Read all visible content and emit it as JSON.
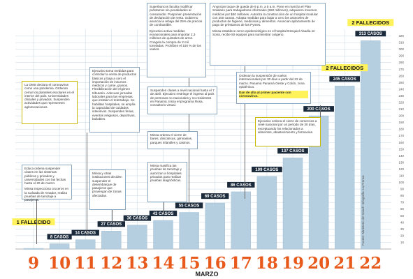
{
  "chart_data": {
    "type": "bar",
    "categories": [
      "9",
      "10",
      "11",
      "12",
      "13",
      "14",
      "15",
      "16",
      "17",
      "18",
      "19",
      "20",
      "21",
      "22"
    ],
    "values": [
      1,
      8,
      14,
      27,
      36,
      43,
      55,
      69,
      86,
      109,
      137,
      200,
      245,
      313
    ],
    "bar_labels": [
      "1 FALLECIDO",
      "8 CASOS",
      "14 CASOS",
      "27 CASOS",
      "36 CASOS",
      "43 CASOS",
      "55 CASOS",
      "69 CASOS",
      "86 CASOS",
      "109 CASOS",
      "137 CASOS",
      "200 CASOS",
      "245 CASOS",
      "313 CASOS"
    ],
    "death_labels": [
      {
        "day": "9",
        "label": "1 FALLECIDO"
      },
      {
        "day": "21",
        "label": "2 FALLECIDOS"
      },
      {
        "day": "22",
        "label": "2 FALLECIDOS"
      }
    ],
    "xlabel": "MARZO",
    "ylim": [
      0,
      330
    ],
    "yticks": [
      10,
      20,
      30,
      40,
      50,
      60,
      70,
      80,
      90,
      100,
      110,
      120,
      130,
      140,
      150,
      160,
      170,
      180,
      190,
      200,
      210,
      220,
      230,
      240,
      250,
      260,
      270,
      280,
      290,
      300,
      310,
      320
    ],
    "grid": true,
    "source": "Fuente: Ministerio de Salud / Infografía: La Prensa",
    "colors": {
      "bar": "#b6cfe0",
      "bar_edge": "#9bbbd2",
      "grid": "#c6d7e4",
      "day_number": "#e85a1b",
      "label_bg": "#1b2a3a",
      "label_text": "#ffffff",
      "highlight": "#fff25a"
    }
  },
  "annotations": {
    "a1": {
      "p1": "La OMS declara el coronavirus como una pandemia. Ordenan cerrar los planteles escolares en el interior del país. Universidades oficiales y privados. Suspenden actividades que representen aglomeraciones."
    },
    "a2": {
      "p1": "Educa ordena suspender clases en las sistemas públicos y privados y universidades con las fechas hasta el 20 de marzo.",
      "p2": "Minsa inspecciona cruceros en la Calzada de Amador, realiza pruebas de tamizaje a pasajeros."
    },
    "a3": {
      "p1": "Ejecutivo toma medidas para controlar la venta de productos básicos y baja a cero el importación de insumos médicos y carne, granos. Flexibilización del régimen tributario. Adecuan jornadas laborales para las empresas que instalen el teletrabajo. Se habilitan hospitales, se amplía la capacidad de cuidados intensivos. Suspenden ferias, eventos religiosos, deportivos, bailables."
    },
    "a4": {
      "p1": "Minsa y otras instituciones deciden suspender el desembarque de pasajeros que provengan de zonas afectadas."
    },
    "a5": {
      "p1": "Suspenden clases a nivel nacional hasta el 7 de abril. Ejecutivo restringe el ingreso al país de personas no nacionales y no residentes en Panamá. Inicia el programa Rosa, consultorio virtual."
    },
    "a6": {
      "p1": "Minsa ordena el cierre de bares, discotecas, gimnasios, parques infantiles y casinos."
    },
    "a7": {
      "p1": "Minsa masifica las pruebas de tamizaje y autorizan a hospitales privados para realizar pruebas diagnósticas."
    },
    "a8": {
      "p1": "Superbancos faculta modificar préstamos sin penalidades al consumidor. Posponen presentación de declaración de renta. Gobierno anuncia la rebaja del 25% de precios de combustible.",
      "p2": "Ejecutivo activa medidas excepcionales para importar 2,3 millones de quintales de arroz. Congela la compra de 2 mil toneladas. Prohíben el 100 % de los vuelos."
    },
    "a9": {
      "p1": "Anuncian toque de queda de 9 p.m. a 5 a.m. Pone en marcha el Plan Solidario para trabajadores informales (550 millones), adquieren insumos médicos por $40 millones. Autoriza la construcción de un hospital modular con 200 camas. Adopta medidas para bajar a cero los aranceles de productos de higiene, medicinas y alimentos. Anuncian aplazamiento de pago de préstamos de las Pymes.",
      "p2": "Minsa establece cerco epidemiológico en el hospital Ezequiel Abadía en Soná, recibe 50 equipos para suministrar oxígeno."
    },
    "a10": {
      "p1": "Ordenan la suspensión de vuelos internacionales por 30 días a partir del 22 de marzo. Panamá Panamá Oeste y Colón, zona epidémica.",
      "p2": "Dan de alta al primer paciente con coronavirus."
    },
    "a11": {
      "p1": "Ejecutivo ordena el cierre de comercios a nivel nacional por un periodo de 30 días, exceptuando los relacionados a alimentos, abastecimiento y farmacias."
    }
  }
}
